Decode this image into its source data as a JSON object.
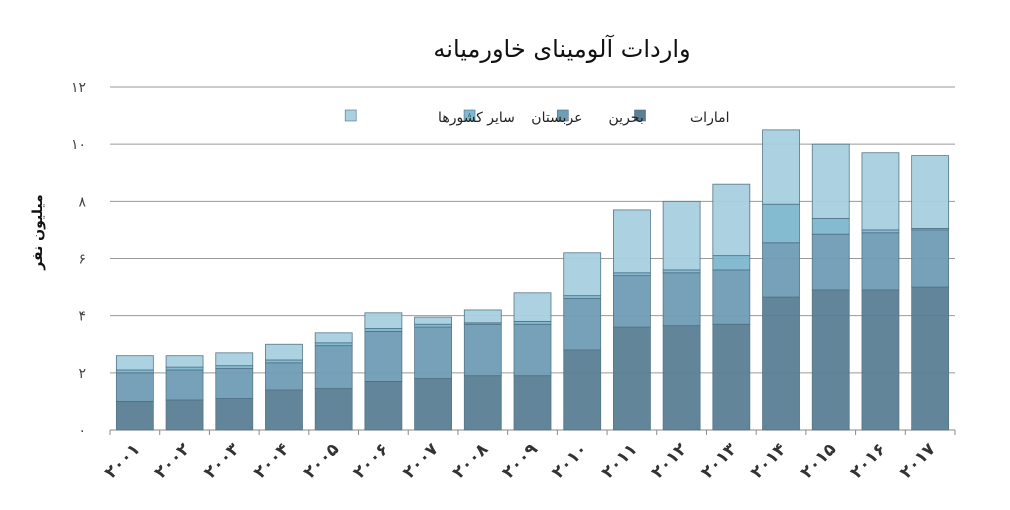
{
  "chart_data": {
    "type": "bar",
    "stacked": true,
    "title": "واردات آلومینای خاورمیانه",
    "ylabel": "میلیون نفر",
    "xlabel": "",
    "ylim": [
      0,
      12
    ],
    "y_ticks": [
      0,
      2,
      4,
      6,
      8,
      10,
      12
    ],
    "y_tick_labels": [
      "۰",
      "۲",
      "۴",
      "۶",
      "۸",
      "۱۰",
      "۱۲"
    ],
    "grid": true,
    "legend_position": "top",
    "categories": [
      "۲۰۰۱",
      "۲۰۰۲",
      "۲۰۰۳",
      "۲۰۰۴",
      "۲۰۰۵",
      "۲۰۰۶",
      "۲۰۰۷",
      "۲۰۰۸",
      "۲۰۰۹",
      "۲۰۱۰",
      "۲۰۱۱",
      "۲۰۱۲",
      "۲۰۱۳",
      "۲۰۱۴",
      "۲۰۱۵",
      "۲۰۱۶",
      "۲۰۱۷"
    ],
    "series": [
      {
        "name": "امارات",
        "color": "#5b7f95",
        "values": [
          1.0,
          1.05,
          1.1,
          1.4,
          1.45,
          1.7,
          1.8,
          1.9,
          1.9,
          2.8,
          3.6,
          3.65,
          3.7,
          4.65,
          4.9,
          4.9,
          5.0
        ]
      },
      {
        "name": "بحرین",
        "color": "#6f9db5",
        "values": [
          1.0,
          1.05,
          1.05,
          0.95,
          1.5,
          1.75,
          1.8,
          1.8,
          1.8,
          1.8,
          1.8,
          1.85,
          1.9,
          1.9,
          1.95,
          2.0,
          2.0
        ]
      },
      {
        "name": "عربستان",
        "color": "#7fb8cf",
        "values": [
          0.1,
          0.1,
          0.1,
          0.1,
          0.1,
          0.1,
          0.1,
          0.05,
          0.1,
          0.1,
          0.1,
          0.1,
          0.5,
          1.35,
          0.55,
          0.1,
          0.05
        ]
      },
      {
        "name": "سایر کشورها",
        "color": "#a8d0e0",
        "values": [
          0.5,
          0.4,
          0.45,
          0.55,
          0.35,
          0.55,
          0.25,
          0.45,
          1.0,
          1.5,
          2.2,
          2.4,
          2.5,
          2.6,
          2.6,
          2.7,
          2.55
        ]
      }
    ]
  }
}
